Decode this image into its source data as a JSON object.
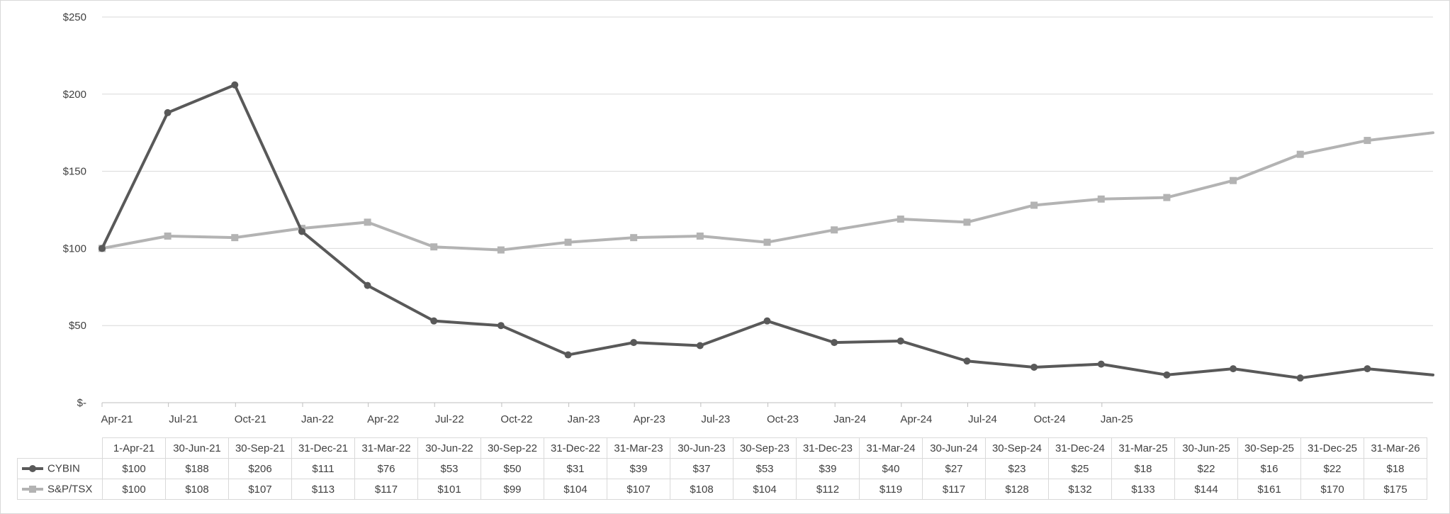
{
  "chart_data": {
    "type": "line",
    "title": "",
    "xlabel": "",
    "ylabel": "",
    "ylim": [
      0,
      250
    ],
    "yticks": [
      {
        "value": 0,
        "label": "$-"
      },
      {
        "value": 50,
        "label": "$50"
      },
      {
        "value": 100,
        "label": "$100"
      },
      {
        "value": 150,
        "label": "$150"
      },
      {
        "value": 200,
        "label": "$200"
      },
      {
        "value": 250,
        "label": "$250"
      }
    ],
    "x_axis_ticks": [
      "Apr-21",
      "Jul-21",
      "Oct-21",
      "Jan-22",
      "Apr-22",
      "Jul-22",
      "Oct-22",
      "Jan-23",
      "Apr-23",
      "Jul-23",
      "Oct-23",
      "Jan-24",
      "Apr-24",
      "Jul-24",
      "Oct-24",
      "Jan-25"
    ],
    "x_axis_range": [
      "1-Apr-21",
      "31-Mar-26"
    ],
    "x": [
      "2021-04-01",
      "2021-06-30",
      "2021-09-30",
      "2021-12-31",
      "2022-03-31",
      "2022-06-30",
      "2022-09-30",
      "2022-12-31",
      "2023-03-31",
      "2023-06-30",
      "2023-09-30",
      "2023-12-31",
      "2024-03-31",
      "2024-06-30",
      "2024-09-30",
      "2024-12-31",
      "2025-03-31",
      "2025-06-30",
      "2025-09-30",
      "2025-12-31",
      "2026-03-31"
    ],
    "table_dates": [
      "1-Apr-21",
      "30-Jun-21",
      "30-Sep-21",
      "31-Dec-21",
      "31-Mar-22",
      "30-Jun-22",
      "30-Sep-22",
      "31-Dec-22",
      "31-Mar-23",
      "30-Jun-23",
      "30-Sep-23",
      "31-Dec-23",
      "31-Mar-24",
      "30-Jun-24",
      "30-Sep-24",
      "31-Dec-24",
      "31-Mar-25",
      "30-Jun-25",
      "30-Sep-25",
      "31-Dec-25",
      "31-Mar-26"
    ],
    "grid": true,
    "legend": "data table, bottom-left",
    "series": [
      {
        "name": "CYBIN",
        "color": "#595959",
        "marker": "circle",
        "values": [
          100,
          188,
          206,
          111,
          76,
          53,
          50,
          31,
          39,
          37,
          53,
          39,
          40,
          27,
          23,
          25,
          18,
          22,
          16,
          22,
          18
        ],
        "labels": [
          "$100",
          "$188",
          "$206",
          "$111",
          "$76",
          "$53",
          "$50",
          "$31",
          "$39",
          "$37",
          "$53",
          "$39",
          "$40",
          "$27",
          "$23",
          "$25",
          "$18",
          "$22",
          "$16",
          "$22",
          "$18"
        ]
      },
      {
        "name": "S&P/TSX",
        "color": "#b3b3b3",
        "marker": "square",
        "values": [
          100,
          108,
          107,
          113,
          117,
          101,
          99,
          104,
          107,
          108,
          104,
          112,
          119,
          117,
          128,
          132,
          133,
          144,
          161,
          170,
          175
        ],
        "labels": [
          "$100",
          "$108",
          "$107",
          "$113",
          "$117",
          "$101",
          "$99",
          "$104",
          "$107",
          "$108",
          "$104",
          "$112",
          "$119",
          "$117",
          "$128",
          "$132",
          "$133",
          "$144",
          "$161",
          "$170",
          "$175"
        ]
      }
    ]
  }
}
